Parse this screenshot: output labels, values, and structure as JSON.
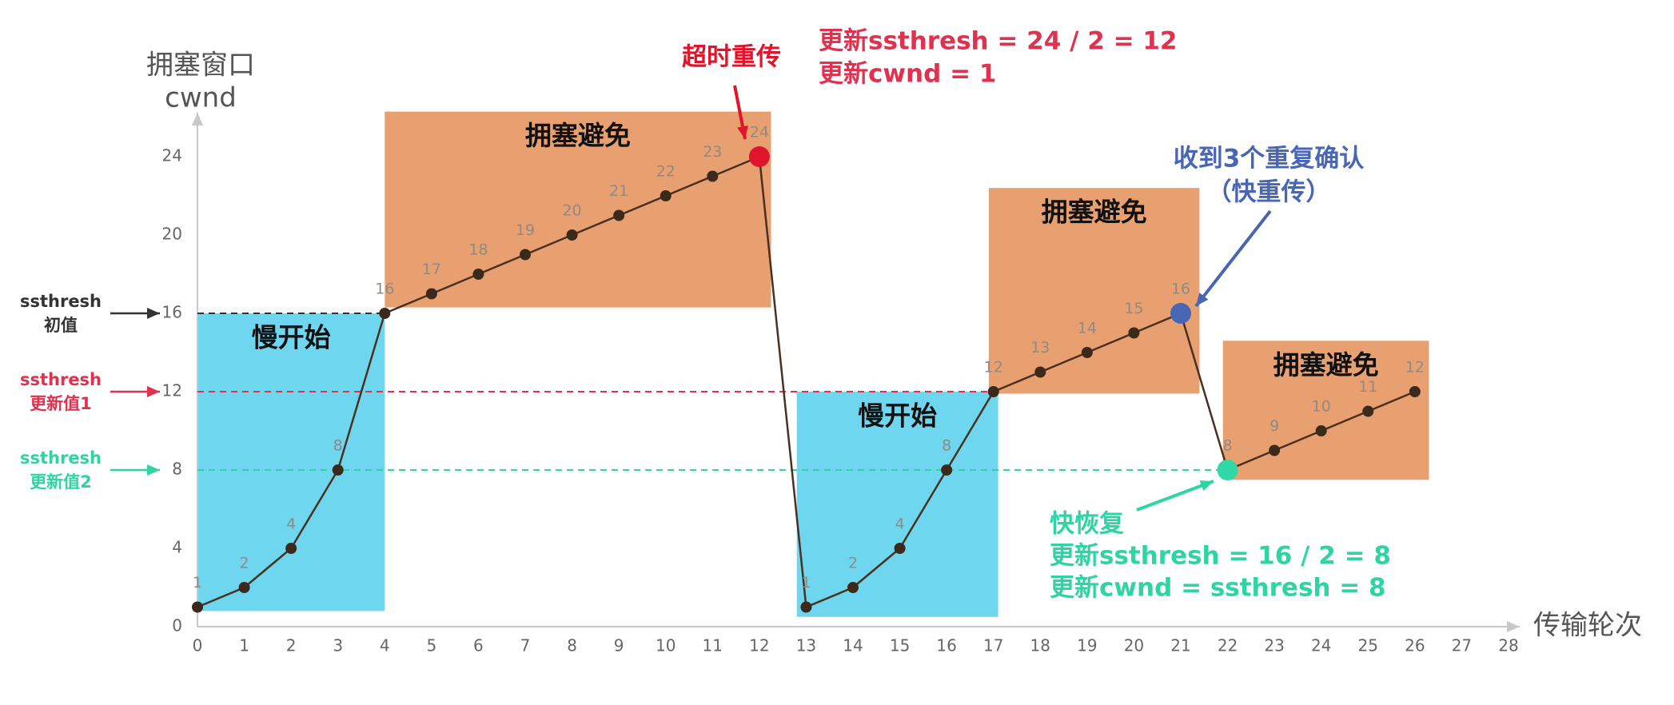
{
  "chart_data": {
    "type": "line",
    "y_label": [
      "拥塞窗口",
      "cwnd"
    ],
    "x_label": "传输轮次",
    "x": [
      0,
      1,
      2,
      3,
      4,
      5,
      6,
      7,
      8,
      9,
      10,
      11,
      12,
      13,
      14,
      15,
      16,
      17,
      18,
      19,
      20,
      21,
      22,
      23,
      24,
      25,
      26
    ],
    "values": [
      1,
      2,
      4,
      8,
      16,
      17,
      18,
      19,
      20,
      21,
      22,
      23,
      24,
      1,
      2,
      4,
      8,
      12,
      13,
      14,
      15,
      16,
      8,
      9,
      10,
      11,
      12
    ],
    "line_color": "#4a3020",
    "marker_color": "#3b2a1c",
    "point_colors": [
      null,
      null,
      null,
      null,
      null,
      null,
      null,
      null,
      null,
      null,
      null,
      null,
      "#e0142a",
      null,
      null,
      null,
      null,
      null,
      null,
      null,
      null,
      "#4866b4",
      "#2fd8a6",
      null,
      null,
      null,
      null
    ],
    "xlim": [
      0,
      28
    ],
    "ylim": [
      0,
      26
    ],
    "xticks": [
      0,
      1,
      2,
      3,
      4,
      5,
      6,
      7,
      8,
      9,
      10,
      11,
      12,
      13,
      14,
      15,
      16,
      17,
      18,
      19,
      20,
      21,
      22,
      23,
      24,
      25,
      26,
      27,
      28
    ],
    "yticks": [
      0,
      4,
      8,
      12,
      16,
      20,
      24
    ],
    "reference_lines": [
      {
        "value": 16,
        "label": [
          "ssthresh",
          "初值"
        ],
        "color": "#333333",
        "xlim": [
          0,
          4
        ]
      },
      {
        "value": 12,
        "label": [
          "ssthresh",
          "更新值1"
        ],
        "color": "#e0314f",
        "xlim": [
          0,
          17
        ]
      },
      {
        "value": 8,
        "label": [
          "ssthresh",
          "更新值2"
        ],
        "color": "#2ed4a4",
        "xlim": [
          0,
          22
        ]
      }
    ],
    "regions": [
      {
        "label": "慢开始",
        "color": "#6fd6ef",
        "xlim": [
          0,
          4
        ],
        "ylim": [
          0.8,
          16
        ]
      },
      {
        "label": "拥塞避免",
        "color": "#e8a070",
        "xlim": [
          4,
          12.25
        ],
        "ylim": [
          16.3,
          26.3
        ]
      },
      {
        "label": "慢开始",
        "color": "#6fd6ef",
        "xlim": [
          12.8,
          17.1
        ],
        "ylim": [
          0.5,
          12
        ]
      },
      {
        "label": "拥塞避免",
        "color": "#e8a070",
        "xlim": [
          16.9,
          21.4
        ],
        "ylim": [
          11.9,
          22.4
        ]
      },
      {
        "label": "拥塞避免",
        "color": "#e8a070",
        "xlim": [
          21.9,
          26.3
        ],
        "ylim": [
          7.5,
          14.6
        ]
      }
    ],
    "annotations": [
      {
        "lines": [
          "超时重传"
        ],
        "color": "#e0142a"
      },
      {
        "lines": [
          "更新ssthresh = 24 / 2 = 12",
          "更新cwnd = 1"
        ],
        "color": "#e0314f"
      },
      {
        "lines": [
          "收到3个重复确认",
          "（快重传）"
        ],
        "color": "#4866b4"
      },
      {
        "lines": [
          "快恢复",
          "更新ssthresh = 16 / 2 = 8",
          "更新cwnd = ssthresh = 8"
        ],
        "color": "#2ed4a4"
      }
    ]
  }
}
